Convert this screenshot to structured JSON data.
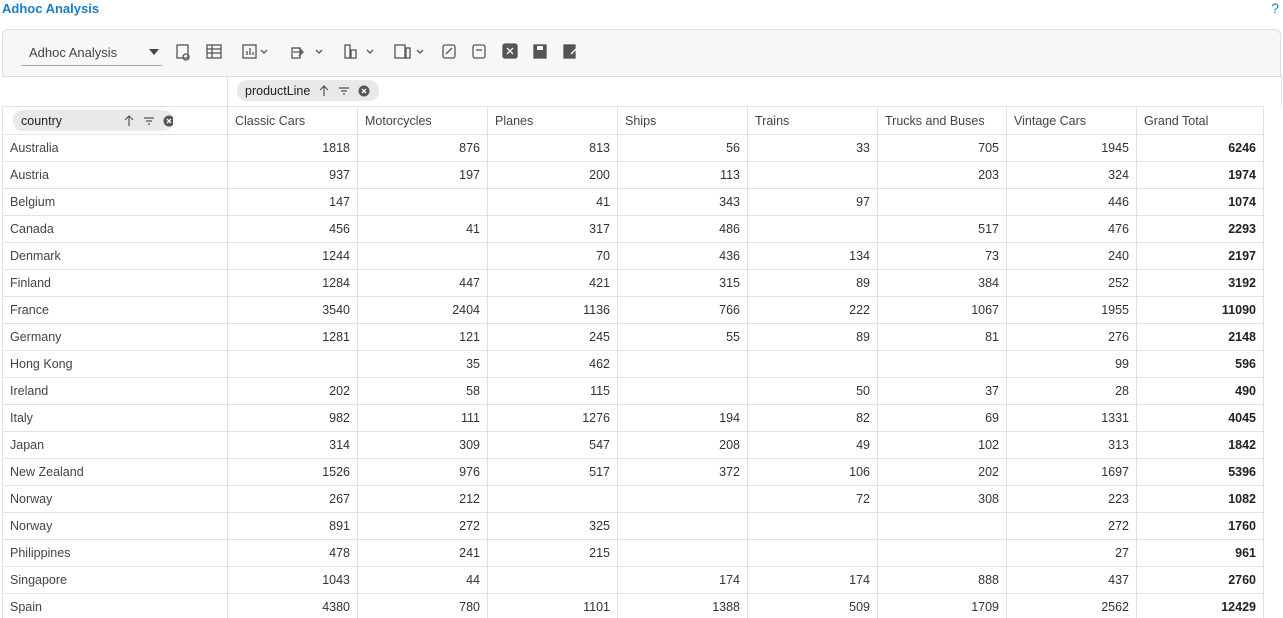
{
  "header": {
    "title": "Adhoc Analysis",
    "help": "?"
  },
  "toolbar": {
    "report_select": "Adhoc Analysis"
  },
  "pivot": {
    "column_field": "productLine",
    "row_field": "country",
    "columns": [
      "Classic Cars",
      "Motorcycles",
      "Planes",
      "Ships",
      "Trains",
      "Trucks and Buses",
      "Vintage Cars",
      "Grand Total"
    ],
    "rows": [
      {
        "label": "Australia",
        "values": [
          1818,
          876,
          813,
          56,
          33,
          705,
          1945,
          6246
        ]
      },
      {
        "label": "Austria",
        "values": [
          937,
          197,
          200,
          113,
          null,
          203,
          324,
          1974
        ]
      },
      {
        "label": "Belgium",
        "values": [
          147,
          null,
          41,
          343,
          97,
          null,
          446,
          1074
        ]
      },
      {
        "label": "Canada",
        "values": [
          456,
          41,
          317,
          486,
          null,
          517,
          476,
          2293
        ]
      },
      {
        "label": "Denmark",
        "values": [
          1244,
          null,
          70,
          436,
          134,
          73,
          240,
          2197
        ]
      },
      {
        "label": "Finland",
        "values": [
          1284,
          447,
          421,
          315,
          89,
          384,
          252,
          3192
        ]
      },
      {
        "label": "France",
        "values": [
          3540,
          2404,
          1136,
          766,
          222,
          1067,
          1955,
          11090
        ]
      },
      {
        "label": "Germany",
        "values": [
          1281,
          121,
          245,
          55,
          89,
          81,
          276,
          2148
        ]
      },
      {
        "label": "Hong Kong",
        "values": [
          null,
          35,
          462,
          null,
          null,
          null,
          99,
          596
        ]
      },
      {
        "label": "Ireland",
        "values": [
          202,
          58,
          115,
          null,
          50,
          37,
          28,
          490
        ]
      },
      {
        "label": "Italy",
        "values": [
          982,
          111,
          1276,
          194,
          82,
          69,
          1331,
          4045
        ]
      },
      {
        "label": "Japan",
        "values": [
          314,
          309,
          547,
          208,
          49,
          102,
          313,
          1842
        ]
      },
      {
        "label": "New Zealand",
        "values": [
          1526,
          976,
          517,
          372,
          106,
          202,
          1697,
          5396
        ]
      },
      {
        "label": "Norway",
        "values": [
          267,
          212,
          null,
          null,
          72,
          308,
          223,
          1082
        ]
      },
      {
        "label": "Norway",
        "values": [
          891,
          272,
          325,
          null,
          null,
          null,
          272,
          1760
        ]
      },
      {
        "label": "Philippines",
        "values": [
          478,
          241,
          215,
          null,
          null,
          null,
          27,
          961
        ]
      },
      {
        "label": "Singapore",
        "values": [
          1043,
          44,
          null,
          174,
          174,
          888,
          437,
          2760
        ]
      },
      {
        "label": "Spain",
        "values": [
          4380,
          780,
          1101,
          1388,
          509,
          1709,
          2562,
          12429
        ]
      }
    ]
  }
}
